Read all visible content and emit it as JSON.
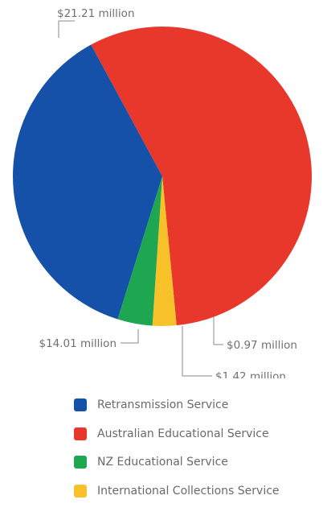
{
  "chart_data": {
    "type": "pie",
    "title": "",
    "slices": [
      {
        "name": "Retransmission Service",
        "value": 14.01,
        "label": "$14.01 million",
        "color": "#1551a8"
      },
      {
        "name": "Australian Educational Service",
        "value": 21.21,
        "label": "$21.21 million",
        "color": "#e8372b"
      },
      {
        "name": "NZ Educational Service",
        "value": 1.42,
        "label": "$1.42 million",
        "color": "#1fa650"
      },
      {
        "name": "International Collections Service",
        "value": 0.97,
        "label": "$0.97 million",
        "color": "#f7c12a"
      }
    ],
    "legend_position": "bottom"
  }
}
